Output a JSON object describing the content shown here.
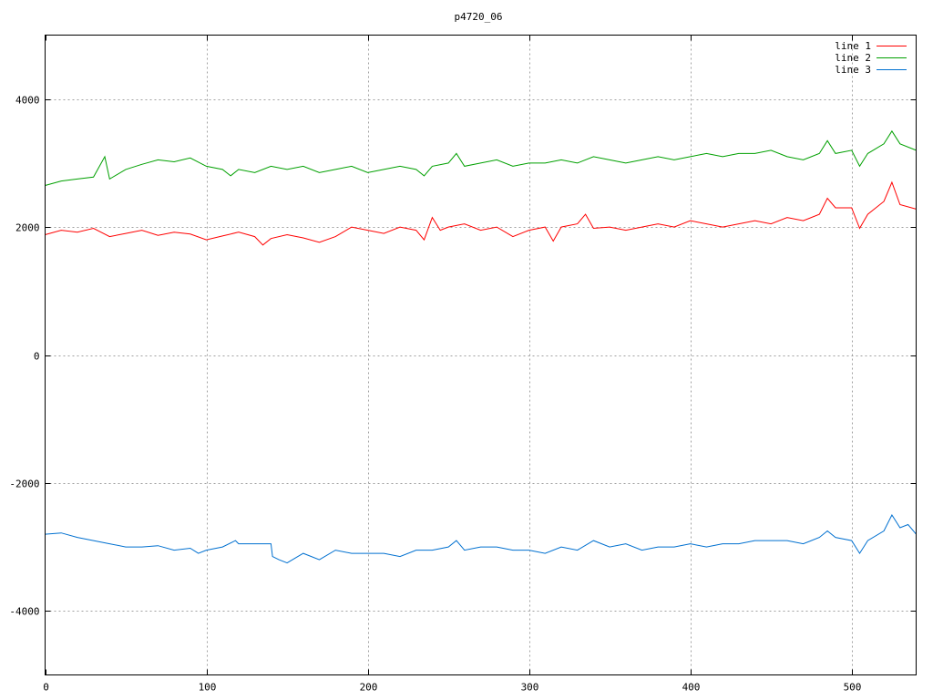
{
  "chart_data": {
    "type": "line",
    "title": "p4720_06",
    "xlim": [
      0,
      540
    ],
    "ylim": [
      -5000,
      5000
    ],
    "x_ticks": [
      0,
      100,
      200,
      300,
      400,
      500
    ],
    "y_ticks": [
      -4000,
      -2000,
      0,
      2000,
      4000
    ],
    "x_tick_labels": [
      "0",
      "100",
      "200",
      "300",
      "400",
      "500"
    ],
    "y_tick_labels": [
      "-4000",
      "-2000",
      "0",
      "2000",
      "4000"
    ],
    "grid": true,
    "legend_position": "top-right",
    "series": [
      {
        "name": "line 1",
        "color": "#ff0000",
        "x": [
          0,
          10,
          20,
          30,
          40,
          50,
          60,
          70,
          80,
          90,
          100,
          110,
          120,
          130,
          135,
          140,
          150,
          160,
          170,
          180,
          190,
          200,
          210,
          220,
          230,
          235,
          240,
          245,
          250,
          260,
          270,
          280,
          290,
          300,
          310,
          315,
          320,
          330,
          335,
          340,
          350,
          360,
          370,
          380,
          390,
          400,
          410,
          420,
          430,
          440,
          450,
          460,
          470,
          480,
          485,
          490,
          500,
          505,
          510,
          520,
          525,
          530,
          540
        ],
        "values": [
          1880,
          1950,
          1920,
          1980,
          1850,
          1900,
          1950,
          1870,
          1920,
          1890,
          1800,
          1860,
          1920,
          1850,
          1720,
          1820,
          1880,
          1830,
          1760,
          1850,
          2000,
          1950,
          1900,
          2000,
          1950,
          1800,
          2150,
          1950,
          2000,
          2050,
          1950,
          2000,
          1850,
          1950,
          2000,
          1780,
          2000,
          2050,
          2200,
          1980,
          2000,
          1950,
          2000,
          2050,
          2000,
          2100,
          2050,
          2000,
          2050,
          2100,
          2050,
          2150,
          2100,
          2200,
          2450,
          2300,
          2300,
          1980,
          2200,
          2400,
          2700,
          2350,
          2280
        ]
      },
      {
        "name": "line 2",
        "color": "#00a000",
        "x": [
          0,
          10,
          20,
          30,
          37,
          40,
          50,
          60,
          70,
          80,
          90,
          100,
          110,
          115,
          120,
          130,
          140,
          150,
          160,
          170,
          180,
          190,
          200,
          210,
          220,
          230,
          235,
          240,
          250,
          255,
          260,
          270,
          280,
          290,
          300,
          310,
          320,
          330,
          340,
          350,
          360,
          370,
          380,
          390,
          400,
          410,
          420,
          430,
          440,
          450,
          460,
          470,
          480,
          485,
          490,
          500,
          505,
          510,
          520,
          525,
          530,
          540
        ],
        "values": [
          2650,
          2720,
          2750,
          2780,
          3100,
          2750,
          2900,
          2980,
          3050,
          3020,
          3080,
          2950,
          2900,
          2800,
          2900,
          2850,
          2950,
          2900,
          2950,
          2850,
          2900,
          2950,
          2850,
          2900,
          2950,
          2900,
          2800,
          2950,
          3000,
          3150,
          2950,
          3000,
          3050,
          2950,
          3000,
          3000,
          3050,
          3000,
          3100,
          3050,
          3000,
          3050,
          3100,
          3050,
          3100,
          3150,
          3100,
          3150,
          3150,
          3200,
          3100,
          3050,
          3150,
          3350,
          3150,
          3200,
          2950,
          3150,
          3300,
          3500,
          3300,
          3200
        ]
      },
      {
        "name": "line 3",
        "color": "#0070d0",
        "x": [
          0,
          10,
          20,
          30,
          40,
          50,
          60,
          70,
          80,
          90,
          95,
          100,
          110,
          118,
          120,
          130,
          140,
          141,
          145,
          150,
          160,
          170,
          180,
          190,
          200,
          210,
          220,
          230,
          240,
          250,
          255,
          260,
          270,
          280,
          290,
          300,
          310,
          320,
          330,
          340,
          350,
          360,
          370,
          380,
          390,
          400,
          410,
          420,
          430,
          440,
          450,
          460,
          470,
          480,
          485,
          490,
          500,
          505,
          510,
          520,
          525,
          530,
          535,
          540
        ],
        "values": [
          -2800,
          -2780,
          -2850,
          -2900,
          -2950,
          -3000,
          -3000,
          -2980,
          -3050,
          -3020,
          -3100,
          -3050,
          -3000,
          -2900,
          -2950,
          -2950,
          -2950,
          -3150,
          -3200,
          -3250,
          -3100,
          -3200,
          -3050,
          -3100,
          -3100,
          -3100,
          -3150,
          -3050,
          -3050,
          -3000,
          -2900,
          -3050,
          -3000,
          -3000,
          -3050,
          -3050,
          -3100,
          -3000,
          -3050,
          -2900,
          -3000,
          -2950,
          -3050,
          -3000,
          -3000,
          -2950,
          -3000,
          -2950,
          -2950,
          -2900,
          -2900,
          -2900,
          -2950,
          -2850,
          -2750,
          -2850,
          -2900,
          -3100,
          -2900,
          -2750,
          -2500,
          -2700,
          -2650,
          -2800
        ]
      }
    ]
  }
}
